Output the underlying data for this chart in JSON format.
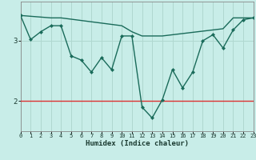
{
  "xlabel": "Humidex (Indice chaleur)",
  "background_color": "#c8ede8",
  "line_color": "#1a6b5a",
  "grid_color": "#b0d8d0",
  "red_line_color": "#dd3333",
  "xlim": [
    0,
    23
  ],
  "ylim": [
    1.5,
    3.65
  ],
  "yticks": [
    2,
    3
  ],
  "xticks": [
    0,
    1,
    2,
    3,
    4,
    5,
    6,
    7,
    8,
    9,
    10,
    11,
    12,
    13,
    14,
    15,
    16,
    17,
    18,
    19,
    20,
    21,
    22,
    23
  ],
  "series1_x": [
    0,
    1,
    2,
    3,
    4,
    5,
    6,
    7,
    8,
    9,
    10,
    11,
    12,
    13,
    14,
    15,
    16,
    17,
    18,
    19,
    20,
    21,
    22,
    23
  ],
  "series1_y": [
    3.42,
    3.02,
    3.15,
    3.25,
    3.25,
    2.75,
    2.68,
    2.48,
    2.72,
    2.52,
    3.08,
    3.08,
    1.9,
    1.72,
    2.02,
    2.52,
    2.22,
    2.48,
    3.0,
    3.1,
    2.88,
    3.18,
    3.35,
    3.38
  ],
  "series2_x": [
    0,
    3,
    4,
    10,
    11,
    12,
    13,
    14,
    20,
    21,
    22,
    23
  ],
  "series2_y": [
    3.42,
    3.38,
    3.38,
    3.25,
    3.15,
    3.08,
    3.08,
    3.08,
    3.2,
    3.38,
    3.38,
    3.38
  ],
  "red_y": 2.0,
  "marker_size": 2.5,
  "linewidth": 1.0
}
